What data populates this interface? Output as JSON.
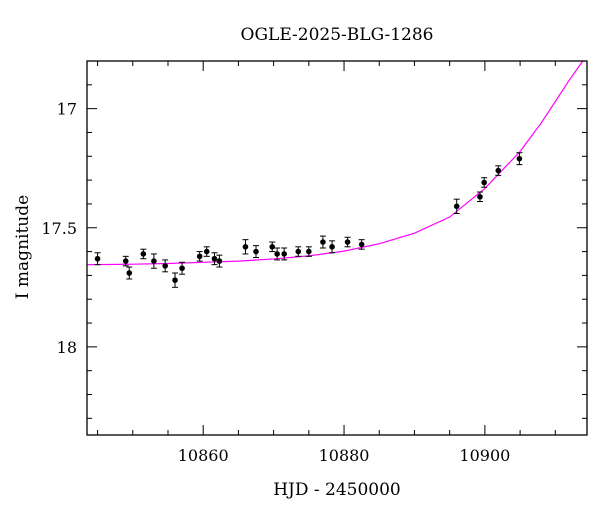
{
  "chart_data": {
    "type": "scatter",
    "title": "OGLE-2025-BLG-1286",
    "xlabel": "HJD - 2450000",
    "ylabel": "I magnitude",
    "xlim": [
      10843.5,
      10914.5
    ],
    "ylim": [
      18.37,
      16.8
    ],
    "y_inverted": true,
    "grid": false,
    "x_ticks": [
      10860,
      10880,
      10900
    ],
    "y_ticks": [
      17,
      17.5,
      18
    ],
    "x_tick_labels": [
      "10860",
      "10880",
      "10900"
    ],
    "y_tick_labels": [
      "17",
      "17.5",
      "18"
    ],
    "x_minor_step": 5,
    "y_minor_step": 0.1,
    "colors": {
      "model": "#ff00ff",
      "points": "#000000",
      "axes": "#000000"
    },
    "points": [
      {
        "x": 10845.0,
        "y": 17.63,
        "err": 0.025
      },
      {
        "x": 10849.0,
        "y": 17.64,
        "err": 0.02
      },
      {
        "x": 10849.5,
        "y": 17.69,
        "err": 0.025
      },
      {
        "x": 10851.5,
        "y": 17.61,
        "err": 0.02
      },
      {
        "x": 10853.0,
        "y": 17.64,
        "err": 0.03
      },
      {
        "x": 10854.6,
        "y": 17.66,
        "err": 0.025
      },
      {
        "x": 10856.0,
        "y": 17.72,
        "err": 0.03
      },
      {
        "x": 10857.0,
        "y": 17.67,
        "err": 0.025
      },
      {
        "x": 10859.5,
        "y": 17.62,
        "err": 0.02
      },
      {
        "x": 10860.5,
        "y": 17.6,
        "err": 0.02
      },
      {
        "x": 10861.6,
        "y": 17.63,
        "err": 0.025
      },
      {
        "x": 10862.3,
        "y": 17.64,
        "err": 0.025
      },
      {
        "x": 10866.0,
        "y": 17.58,
        "err": 0.03
      },
      {
        "x": 10867.5,
        "y": 17.6,
        "err": 0.025
      },
      {
        "x": 10869.8,
        "y": 17.58,
        "err": 0.02
      },
      {
        "x": 10870.5,
        "y": 17.61,
        "err": 0.025
      },
      {
        "x": 10871.5,
        "y": 17.61,
        "err": 0.025
      },
      {
        "x": 10873.5,
        "y": 17.6,
        "err": 0.02
      },
      {
        "x": 10875.0,
        "y": 17.6,
        "err": 0.02
      },
      {
        "x": 10877.0,
        "y": 17.56,
        "err": 0.025
      },
      {
        "x": 10878.3,
        "y": 17.58,
        "err": 0.025
      },
      {
        "x": 10880.5,
        "y": 17.56,
        "err": 0.02
      },
      {
        "x": 10882.5,
        "y": 17.57,
        "err": 0.02
      },
      {
        "x": 10896.0,
        "y": 17.41,
        "err": 0.03
      },
      {
        "x": 10899.3,
        "y": 17.37,
        "err": 0.02
      },
      {
        "x": 10899.9,
        "y": 17.31,
        "err": 0.02
      },
      {
        "x": 10901.9,
        "y": 17.26,
        "err": 0.02
      },
      {
        "x": 10904.9,
        "y": 17.21,
        "err": 0.025
      }
    ],
    "model": {
      "x": [
        10843.5,
        10850,
        10855,
        10860,
        10865,
        10870,
        10875,
        10880,
        10885,
        10890,
        10895,
        10900,
        10905,
        10908,
        10910,
        10912,
        10913.9
      ],
      "y": [
        17.655,
        17.653,
        17.65,
        17.645,
        17.64,
        17.631,
        17.618,
        17.598,
        17.567,
        17.523,
        17.455,
        17.335,
        17.18,
        17.06,
        16.97,
        16.88,
        16.8
      ]
    }
  }
}
